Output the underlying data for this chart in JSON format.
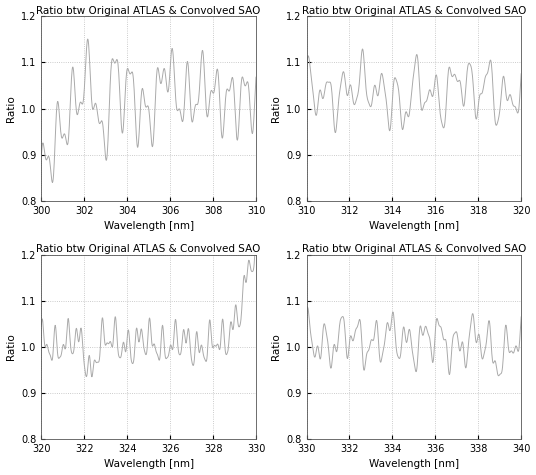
{
  "title": "Ratio btw Original ATLAS & Convolved SAO",
  "xlabel": "Wavelength [nm]",
  "ylabel": "Ratio",
  "ylim": [
    0.8,
    1.2
  ],
  "yticks": [
    0.8,
    0.9,
    1.0,
    1.1,
    1.2
  ],
  "subplots": [
    {
      "xmin": 300,
      "xmax": 310,
      "xticks": [
        300,
        302,
        304,
        306,
        308,
        310
      ]
    },
    {
      "xmin": 310,
      "xmax": 320,
      "xticks": [
        310,
        312,
        314,
        316,
        318,
        320
      ]
    },
    {
      "xmin": 320,
      "xmax": 330,
      "xticks": [
        320,
        322,
        324,
        326,
        328,
        330
      ]
    },
    {
      "xmin": 330,
      "xmax": 340,
      "xticks": [
        330,
        332,
        334,
        336,
        338,
        340
      ]
    }
  ],
  "line_color": "#aaaaaa",
  "background_color": "#ffffff",
  "grid_color": "#bbbbbb",
  "title_fontsize": 7.5,
  "label_fontsize": 7.5,
  "tick_fontsize": 7.0
}
